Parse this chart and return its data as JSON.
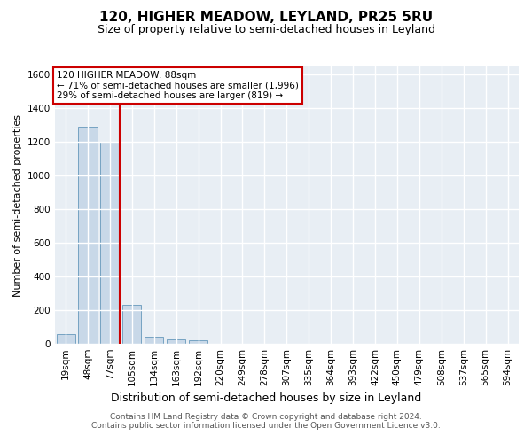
{
  "title": "120, HIGHER MEADOW, LEYLAND, PR25 5RU",
  "subtitle": "Size of property relative to semi-detached houses in Leyland",
  "xlabel": "Distribution of semi-detached houses by size in Leyland",
  "ylabel": "Number of semi-detached properties",
  "footer_line1": "Contains HM Land Registry data © Crown copyright and database right 2024.",
  "footer_line2": "Contains public sector information licensed under the Open Government Licence v3.0.",
  "bins": [
    "19sqm",
    "48sqm",
    "77sqm",
    "105sqm",
    "134sqm",
    "163sqm",
    "192sqm",
    "220sqm",
    "249sqm",
    "278sqm",
    "307sqm",
    "335sqm",
    "364sqm",
    "393sqm",
    "422sqm",
    "450sqm",
    "479sqm",
    "508sqm",
    "537sqm",
    "565sqm",
    "594sqm"
  ],
  "values": [
    60,
    1290,
    1200,
    230,
    40,
    25,
    20,
    0,
    0,
    0,
    0,
    0,
    0,
    0,
    0,
    0,
    0,
    0,
    0,
    0,
    0
  ],
  "bar_color": "#c8d8e8",
  "bar_edge_color": "#6699bb",
  "property_line_x": 2.45,
  "annotation_text_line1": "120 HIGHER MEADOW: 88sqm",
  "annotation_text_line2": "← 71% of semi-detached houses are smaller (1,996)",
  "annotation_text_line3": "29% of semi-detached houses are larger (819) →",
  "annotation_box_color": "#cc0000",
  "ylim": [
    0,
    1650
  ],
  "yticks": [
    0,
    200,
    400,
    600,
    800,
    1000,
    1200,
    1400,
    1600
  ],
  "background_color": "#e8eef4",
  "grid_color": "#ffffff",
  "title_fontsize": 11,
  "subtitle_fontsize": 9,
  "xlabel_fontsize": 9,
  "ylabel_fontsize": 8,
  "tick_fontsize": 7.5,
  "footer_fontsize": 6.5
}
